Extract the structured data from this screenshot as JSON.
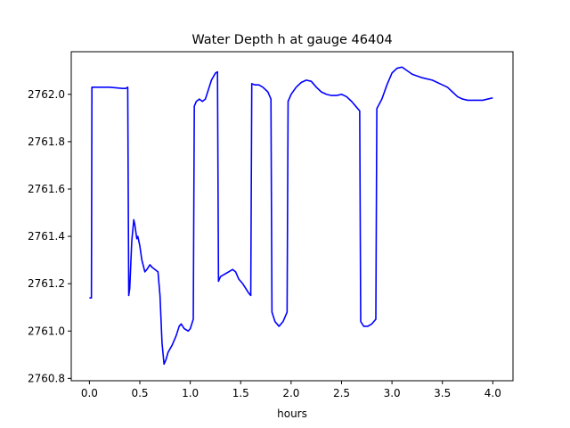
{
  "chart_data": {
    "type": "line",
    "title": "Water Depth h at gauge 46404",
    "xlabel": "hours",
    "ylabel": "",
    "xlim": [
      -0.18,
      4.2
    ],
    "ylim": [
      2760.79,
      2762.18
    ],
    "xticks": [
      0.0,
      0.5,
      1.0,
      1.5,
      2.0,
      2.5,
      3.0,
      3.5,
      4.0
    ],
    "xtick_labels": [
      "0.0",
      "0.5",
      "1.0",
      "1.5",
      "2.0",
      "2.5",
      "3.0",
      "3.5",
      "4.0"
    ],
    "yticks": [
      2760.8,
      2761.0,
      2761.2,
      2761.4,
      2761.6,
      2761.8,
      2762.0
    ],
    "ytick_labels": [
      "2760.8",
      "2761.0",
      "2761.2",
      "2761.4",
      "2761.6",
      "2761.8",
      "2762.0"
    ],
    "grid": false,
    "series": [
      {
        "color": "#0000ff",
        "x": [
          0.0,
          0.02,
          0.025,
          0.2,
          0.33,
          0.36,
          0.38,
          0.39,
          0.4,
          0.42,
          0.44,
          0.45,
          0.47,
          0.48,
          0.5,
          0.52,
          0.55,
          0.57,
          0.6,
          0.62,
          0.65,
          0.68,
          0.7,
          0.72,
          0.74,
          0.76,
          0.78,
          0.82,
          0.86,
          0.89,
          0.91,
          0.94,
          0.98,
          1.0,
          1.03,
          1.04,
          1.06,
          1.09,
          1.12,
          1.15,
          1.18,
          1.21,
          1.25,
          1.27,
          1.28,
          1.3,
          1.34,
          1.38,
          1.42,
          1.45,
          1.48,
          1.52,
          1.55,
          1.58,
          1.6,
          1.61,
          1.64,
          1.68,
          1.72,
          1.77,
          1.8,
          1.81,
          1.84,
          1.88,
          1.92,
          1.96,
          1.97,
          2.0,
          2.05,
          2.1,
          2.15,
          2.2,
          2.25,
          2.3,
          2.35,
          2.4,
          2.45,
          2.5,
          2.55,
          2.6,
          2.64,
          2.68,
          2.69,
          2.72,
          2.76,
          2.8,
          2.84,
          2.85,
          2.9,
          2.95,
          3.0,
          3.05,
          3.1,
          3.15,
          3.2,
          3.3,
          3.4,
          3.5,
          3.55,
          3.6,
          3.65,
          3.7,
          3.75,
          3.8,
          3.9,
          3.95,
          4.0
        ],
        "y": [
          2761.14,
          2761.14,
          2762.03,
          2762.03,
          2762.025,
          2762.025,
          2762.03,
          2761.15,
          2761.18,
          2761.38,
          2761.47,
          2761.45,
          2761.39,
          2761.4,
          2761.36,
          2761.3,
          2761.25,
          2761.26,
          2761.28,
          2761.27,
          2761.26,
          2761.25,
          2761.15,
          2760.95,
          2760.86,
          2760.88,
          2760.91,
          2760.94,
          2760.98,
          2761.02,
          2761.03,
          2761.01,
          2761.0,
          2761.01,
          2761.05,
          2761.95,
          2761.97,
          2761.98,
          2761.97,
          2761.98,
          2762.02,
          2762.06,
          2762.09,
          2762.095,
          2761.21,
          2761.23,
          2761.24,
          2761.25,
          2761.26,
          2761.25,
          2761.22,
          2761.2,
          2761.18,
          2761.16,
          2761.15,
          2762.045,
          2762.04,
          2762.04,
          2762.03,
          2762.01,
          2761.98,
          2761.08,
          2761.04,
          2761.02,
          2761.04,
          2761.08,
          2761.97,
          2762.0,
          2762.03,
          2762.05,
          2762.06,
          2762.055,
          2762.03,
          2762.01,
          2762.0,
          2761.995,
          2761.995,
          2762.0,
          2761.99,
          2761.97,
          2761.95,
          2761.93,
          2761.04,
          2761.02,
          2761.02,
          2761.03,
          2761.05,
          2761.94,
          2761.98,
          2762.04,
          2762.09,
          2762.11,
          2762.115,
          2762.1,
          2762.085,
          2762.07,
          2762.06,
          2762.04,
          2762.03,
          2762.01,
          2761.99,
          2761.98,
          2761.975,
          2761.975,
          2761.975,
          2761.98,
          2761.985
        ]
      }
    ]
  }
}
